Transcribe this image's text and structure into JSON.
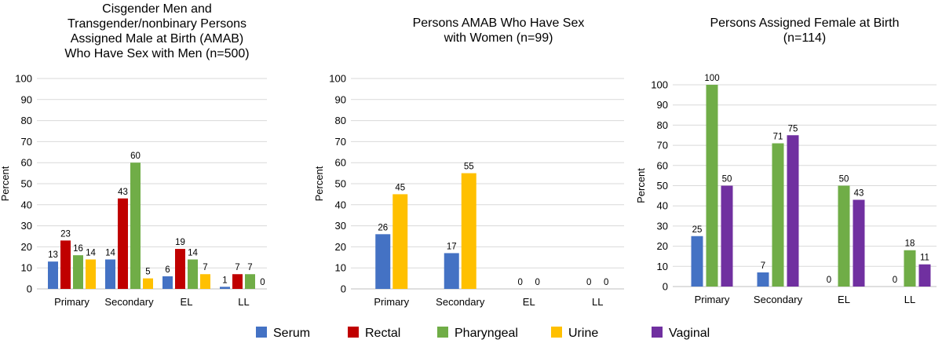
{
  "legend": [
    {
      "name": "Serum",
      "color": "#4472C4"
    },
    {
      "name": "Rectal",
      "color": "#C00000"
    },
    {
      "name": "Pharyngeal",
      "color": "#70AD47"
    },
    {
      "name": "Urine",
      "color": "#FFC000"
    },
    {
      "name": "Vaginal",
      "color": "#7030A0"
    }
  ],
  "chart_data": [
    {
      "type": "bar",
      "title": [
        "Cisgender Men and",
        "Transgender/nonbinary Persons",
        "Assigned Male at Birth (AMAB)",
        "Who Have Sex with Men (n=500)"
      ],
      "ylabel": "Percent",
      "ylim": [
        0,
        100
      ],
      "yticks": [
        0,
        10,
        20,
        30,
        40,
        50,
        60,
        70,
        80,
        90,
        100
      ],
      "grid": true,
      "categories": [
        "Primary",
        "Secondary",
        "EL",
        "LL"
      ],
      "series": [
        {
          "name": "Serum",
          "color": "#4472C4",
          "values": [
            13,
            14,
            6,
            1
          ]
        },
        {
          "name": "Rectal",
          "color": "#C00000",
          "values": [
            23,
            43,
            19,
            7
          ]
        },
        {
          "name": "Pharyngeal",
          "color": "#70AD47",
          "values": [
            16,
            60,
            14,
            7
          ]
        },
        {
          "name": "Urine",
          "color": "#FFC000",
          "values": [
            14,
            5,
            7,
            0
          ]
        }
      ]
    },
    {
      "type": "bar",
      "title": [
        "Persons AMAB Who Have Sex",
        "with Women (n=99)"
      ],
      "ylabel": "Percent",
      "ylim": [
        0,
        100
      ],
      "yticks": [
        0,
        10,
        20,
        30,
        40,
        50,
        60,
        70,
        80,
        90,
        100
      ],
      "grid": true,
      "categories": [
        "Primary",
        "Secondary",
        "EL",
        "LL"
      ],
      "series": [
        {
          "name": "Serum",
          "color": "#4472C4",
          "values": [
            26,
            17,
            0,
            0
          ]
        },
        {
          "name": "Urine",
          "color": "#FFC000",
          "values": [
            45,
            55,
            0,
            0
          ]
        }
      ]
    },
    {
      "type": "bar",
      "title": [
        "Persons Assigned Female at Birth",
        "(n=114)"
      ],
      "ylabel": "Percent",
      "ylim": [
        0,
        100
      ],
      "yticks": [
        0,
        10,
        20,
        30,
        40,
        50,
        60,
        70,
        80,
        90,
        100
      ],
      "grid": true,
      "categories": [
        "Primary",
        "Secondary",
        "EL",
        "LL"
      ],
      "series": [
        {
          "name": "Serum",
          "color": "#4472C4",
          "values": [
            25,
            7,
            0,
            0
          ]
        },
        {
          "name": "Pharyngeal",
          "color": "#70AD47",
          "values": [
            100,
            71,
            50,
            18
          ]
        },
        {
          "name": "Vaginal",
          "color": "#7030A0",
          "values": [
            50,
            75,
            43,
            11
          ]
        }
      ]
    }
  ]
}
